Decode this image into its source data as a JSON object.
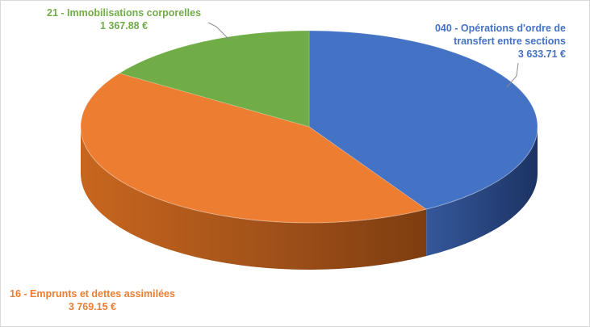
{
  "chart_data": {
    "type": "pie",
    "style": "3d",
    "title": "",
    "grid": false,
    "legend": "none",
    "slices": [
      {
        "id": "s040",
        "label_lines": [
          "040 - Opérations d'ordre de",
          "transfert entre sections"
        ],
        "value": 3633.71,
        "value_text": "3 633.71 €",
        "color": "#4472c4",
        "side_color": "#2c4b85"
      },
      {
        "id": "s16",
        "label_lines": [
          "16 - Emprunts et dettes assimilées"
        ],
        "value": 3769.15,
        "value_text": "3 769.15 €",
        "color": "#ed7d31",
        "side_color": "#b55a1e"
      },
      {
        "id": "s21",
        "label_lines": [
          "21 - Immobilisations corporelles"
        ],
        "value": 1367.88,
        "value_text": "1 367.88 €",
        "color": "#70ad47",
        "side_color": "#4e7a31"
      }
    ]
  }
}
